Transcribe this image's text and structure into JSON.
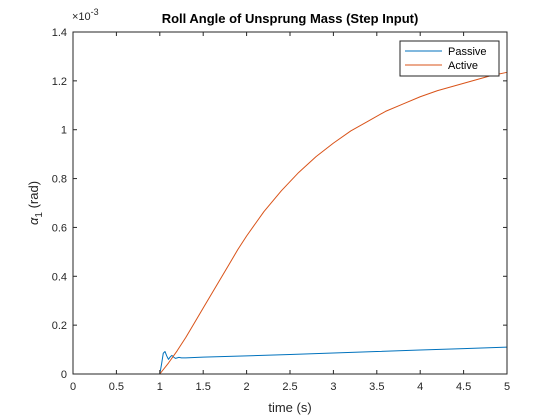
{
  "chart_data": {
    "type": "line",
    "title": "Roll Angle of Unsprung Mass (Step Input)",
    "xlabel": "time (s)",
    "ylabel": "α",
    "ylabel_subscript": "1",
    "ylabel_unit": " (rad)",
    "xlim": [
      0,
      5
    ],
    "ylim": [
      0,
      1.4
    ],
    "y_exponent": {
      "prefix": "×10",
      "power": "-3"
    },
    "x_ticks": [
      {
        "value": 0,
        "label": "0"
      },
      {
        "value": 0.5,
        "label": "0.5"
      },
      {
        "value": 1,
        "label": "1"
      },
      {
        "value": 1.5,
        "label": "1.5"
      },
      {
        "value": 2,
        "label": "2"
      },
      {
        "value": 2.5,
        "label": "2.5"
      },
      {
        "value": 3,
        "label": "3"
      },
      {
        "value": 3.5,
        "label": "3.5"
      },
      {
        "value": 4,
        "label": "4"
      },
      {
        "value": 4.5,
        "label": "4.5"
      },
      {
        "value": 5,
        "label": "5"
      }
    ],
    "y_ticks": [
      {
        "value": 0,
        "label": "0"
      },
      {
        "value": 0.2,
        "label": "0.2"
      },
      {
        "value": 0.4,
        "label": "0.4"
      },
      {
        "value": 0.6,
        "label": "0.6"
      },
      {
        "value": 0.8,
        "label": "0.8"
      },
      {
        "value": 1.0,
        "label": "1"
      },
      {
        "value": 1.2,
        "label": "1.2"
      },
      {
        "value": 1.4,
        "label": "1.4"
      }
    ],
    "grid": false,
    "legend_position": "top-right",
    "series": [
      {
        "name": "Passive",
        "color": "#0072BD",
        "x": [
          0,
          1.0,
          1.02,
          1.04,
          1.06,
          1.08,
          1.1,
          1.12,
          1.14,
          1.16,
          1.18,
          1.2,
          1.22,
          1.25,
          1.3,
          1.5,
          2,
          2.5,
          3,
          3.5,
          4,
          4.5,
          5
        ],
        "y": [
          0,
          0,
          0.04,
          0.085,
          0.092,
          0.074,
          0.06,
          0.07,
          0.076,
          0.069,
          0.064,
          0.066,
          0.068,
          0.066,
          0.066,
          0.069,
          0.074,
          0.08,
          0.086,
          0.092,
          0.098,
          0.104,
          0.11
        ]
      },
      {
        "name": "Active",
        "color": "#D95319",
        "x": [
          0,
          1.0,
          1.1,
          1.2,
          1.3,
          1.4,
          1.5,
          1.6,
          1.7,
          1.8,
          1.9,
          2.0,
          2.2,
          2.4,
          2.6,
          2.8,
          3.0,
          3.2,
          3.4,
          3.6,
          3.8,
          4.0,
          4.2,
          4.4,
          4.6,
          4.8,
          5.0
        ],
        "y": [
          0,
          0,
          0.045,
          0.095,
          0.15,
          0.21,
          0.27,
          0.33,
          0.39,
          0.45,
          0.51,
          0.565,
          0.665,
          0.75,
          0.825,
          0.89,
          0.945,
          0.995,
          1.035,
          1.075,
          1.105,
          1.135,
          1.16,
          1.18,
          1.2,
          1.22,
          1.235
        ]
      }
    ]
  }
}
